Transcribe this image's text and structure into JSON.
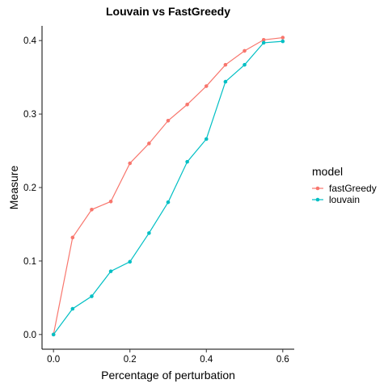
{
  "chart_data": {
    "type": "line",
    "title": "Louvain vs FastGreedy",
    "xlabel": "Percentage of perturbation",
    "ylabel": "Measure",
    "x": [
      0.0,
      0.05,
      0.1,
      0.15,
      0.2,
      0.25,
      0.3,
      0.35,
      0.4,
      0.45,
      0.5,
      0.55,
      0.6
    ],
    "xlim": [
      -0.03,
      0.63
    ],
    "ylim": [
      -0.02,
      0.42
    ],
    "xticks": [
      0.0,
      0.2,
      0.4,
      0.6
    ],
    "xtick_labels": [
      "0.0",
      "0.2",
      "0.4",
      "0.6"
    ],
    "yticks": [
      0.0,
      0.1,
      0.2,
      0.3,
      0.4
    ],
    "ytick_labels": [
      "0.0",
      "0.1",
      "0.2",
      "0.3",
      "0.4"
    ],
    "grid": false,
    "legend": {
      "title": "model",
      "position": "right"
    },
    "series": [
      {
        "name": "fastGreedy",
        "color": "#F8766D",
        "values": [
          0.0,
          0.132,
          0.17,
          0.181,
          0.233,
          0.26,
          0.291,
          0.313,
          0.338,
          0.367,
          0.386,
          0.401,
          0.404
        ]
      },
      {
        "name": "louvain",
        "color": "#00BFC4",
        "values": [
          0.0,
          0.035,
          0.052,
          0.086,
          0.099,
          0.138,
          0.18,
          0.235,
          0.266,
          0.344,
          0.367,
          0.397,
          0.399
        ]
      }
    ]
  }
}
